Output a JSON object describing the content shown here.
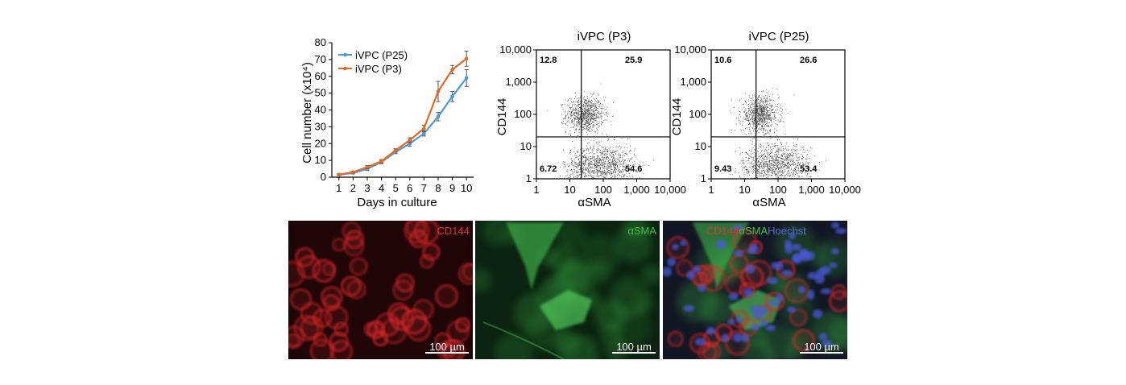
{
  "chart_data": [
    {
      "type": "line",
      "xlabel": "Days in culture",
      "ylabel": "Cell number (x10⁴)",
      "x": [
        1,
        2,
        3,
        4,
        5,
        6,
        7,
        8,
        9,
        10
      ],
      "xlim": [
        0.5,
        10.5
      ],
      "ylim": [
        0,
        80
      ],
      "yticks": [
        0,
        10,
        20,
        30,
        40,
        50,
        60,
        70,
        80
      ],
      "legend_position": "top-left",
      "series": [
        {
          "name": "iVPC (P25)",
          "color": "#4f97d6",
          "values": [
            1.5,
            2.5,
            5,
            9,
            15,
            20,
            26,
            36,
            48,
            59
          ],
          "errors": [
            0.5,
            0.5,
            1,
            1,
            1,
            1.5,
            1.5,
            2.5,
            3,
            5
          ]
        },
        {
          "name": "iVPC (P3)",
          "color": "#e36a25",
          "values": [
            1.5,
            3,
            6,
            9.5,
            16,
            22,
            29,
            51,
            64,
            70.5
          ],
          "errors": [
            0.5,
            0.5,
            1,
            1,
            1,
            1.5,
            2,
            6,
            2.5,
            4.5
          ]
        }
      ]
    },
    {
      "type": "scatter",
      "title": "iVPC (P3)",
      "xlabel": "αSMA",
      "ylabel": "CD144",
      "scale": "log",
      "xlim": [
        1,
        10000
      ],
      "ylim": [
        1,
        10000
      ],
      "xticks": [
        "1",
        "10",
        "100",
        "1,000",
        "10,000"
      ],
      "yticks": [
        "1",
        "10",
        "100",
        "1,000",
        "10,000"
      ],
      "gate": {
        "x": 22,
        "y": 20
      },
      "quadrants": {
        "upper_left": "12.8",
        "upper_right": "25.9",
        "lower_left": "6.72",
        "lower_right": "54.6"
      }
    },
    {
      "type": "scatter",
      "title": "iVPC (P25)",
      "xlabel": "αSMA",
      "ylabel": "CD144",
      "scale": "log",
      "xlim": [
        1,
        10000
      ],
      "ylim": [
        1,
        10000
      ],
      "xticks": [
        "1",
        "10",
        "100",
        "1,000",
        "10,000"
      ],
      "yticks": [
        "1",
        "10",
        "100",
        "1,000",
        "10,000"
      ],
      "gate": {
        "x": 22,
        "y": 20
      },
      "quadrants": {
        "upper_left": "10.6",
        "upper_right": "26.6",
        "lower_left": "9.43",
        "lower_right": "53.4"
      }
    }
  ],
  "micrographs": [
    {
      "labels": [
        {
          "text": "CD144",
          "color": "#e03030"
        }
      ],
      "scale_bar": "100 µm"
    },
    {
      "labels": [
        {
          "text": "αSMA",
          "color": "#3fbf3f"
        }
      ],
      "scale_bar": "100 µm"
    },
    {
      "labels": [
        {
          "text": "CD144",
          "color": "#e03030"
        },
        {
          "text": "αSMA",
          "color": "#3fbf3f"
        },
        {
          "text": "Hoechst",
          "color": "#5a6ad8"
        }
      ],
      "scale_bar": "100 µm"
    }
  ]
}
